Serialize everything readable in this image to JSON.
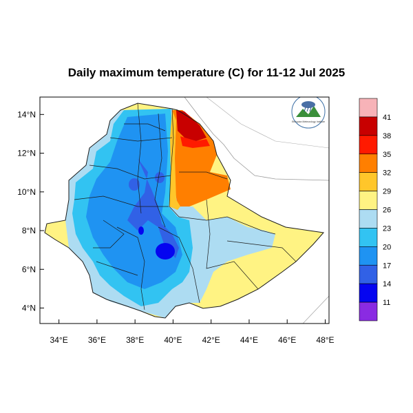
{
  "map": {
    "title": "Daily maximum temperature (C) for 11-12 Jul 2025",
    "longitude_ticks": [
      "34°E",
      "36°E",
      "38°E",
      "40°E",
      "42°E",
      "44°E",
      "46°E",
      "48°E"
    ],
    "latitude_ticks": [
      "14°N",
      "12°N",
      "10°N",
      "8°N",
      "6°N",
      "4°N"
    ],
    "lon_range": [
      33,
      48.2
    ],
    "lat_range": [
      3.2,
      14.9
    ],
    "logo_text": "Ethiopian Meteorology Institute"
  },
  "colorbar": {
    "labels": [
      "41",
      "38",
      "35",
      "32",
      "29",
      "26",
      "23",
      "20",
      "17",
      "14",
      "11"
    ],
    "colors": [
      "#f7b3b8",
      "#c80000",
      "#ff1a00",
      "#ff7f00",
      "#ffc62a",
      "#fff383",
      "#addcf2",
      "#32c3f2",
      "#1f93f2",
      "#3161e6",
      "#0505f0",
      "#8a2be2"
    ]
  }
}
